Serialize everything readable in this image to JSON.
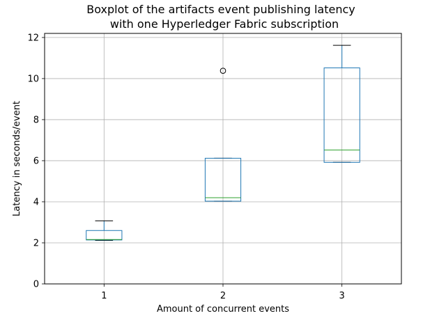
{
  "chart_data": {
    "type": "boxplot",
    "title_line1": "Boxplot of the artifacts event publishing latency",
    "title_line2": "with one Hyperledger Fabric subscription",
    "xlabel": "Amount of concurrent events",
    "ylabel": "Latency in seconds/event",
    "categories": [
      "1",
      "2",
      "3"
    ],
    "ylim": [
      0,
      12.2
    ],
    "xlim": [
      0.5,
      3.5
    ],
    "yticks": [
      "0",
      "2",
      "4",
      "6",
      "8",
      "10",
      "12"
    ],
    "grid": true,
    "boxes": [
      {
        "category": "1",
        "whisker_low": 2.12,
        "q1": 2.14,
        "median": 2.16,
        "q3": 2.6,
        "whisker_high": 3.07,
        "outliers": []
      },
      {
        "category": "2",
        "whisker_low": 4.03,
        "q1": 4.03,
        "median": 4.2,
        "q3": 6.12,
        "whisker_high": 6.12,
        "outliers": [
          10.38
        ]
      },
      {
        "category": "3",
        "whisker_low": 5.92,
        "q1": 5.92,
        "median": 6.52,
        "q3": 10.52,
        "whisker_high": 11.62,
        "outliers": []
      }
    ],
    "colors": {
      "box": "#1f77b4",
      "median": "#2ca02c",
      "whisker": "#000000",
      "grid": "#b0b0b0"
    }
  }
}
